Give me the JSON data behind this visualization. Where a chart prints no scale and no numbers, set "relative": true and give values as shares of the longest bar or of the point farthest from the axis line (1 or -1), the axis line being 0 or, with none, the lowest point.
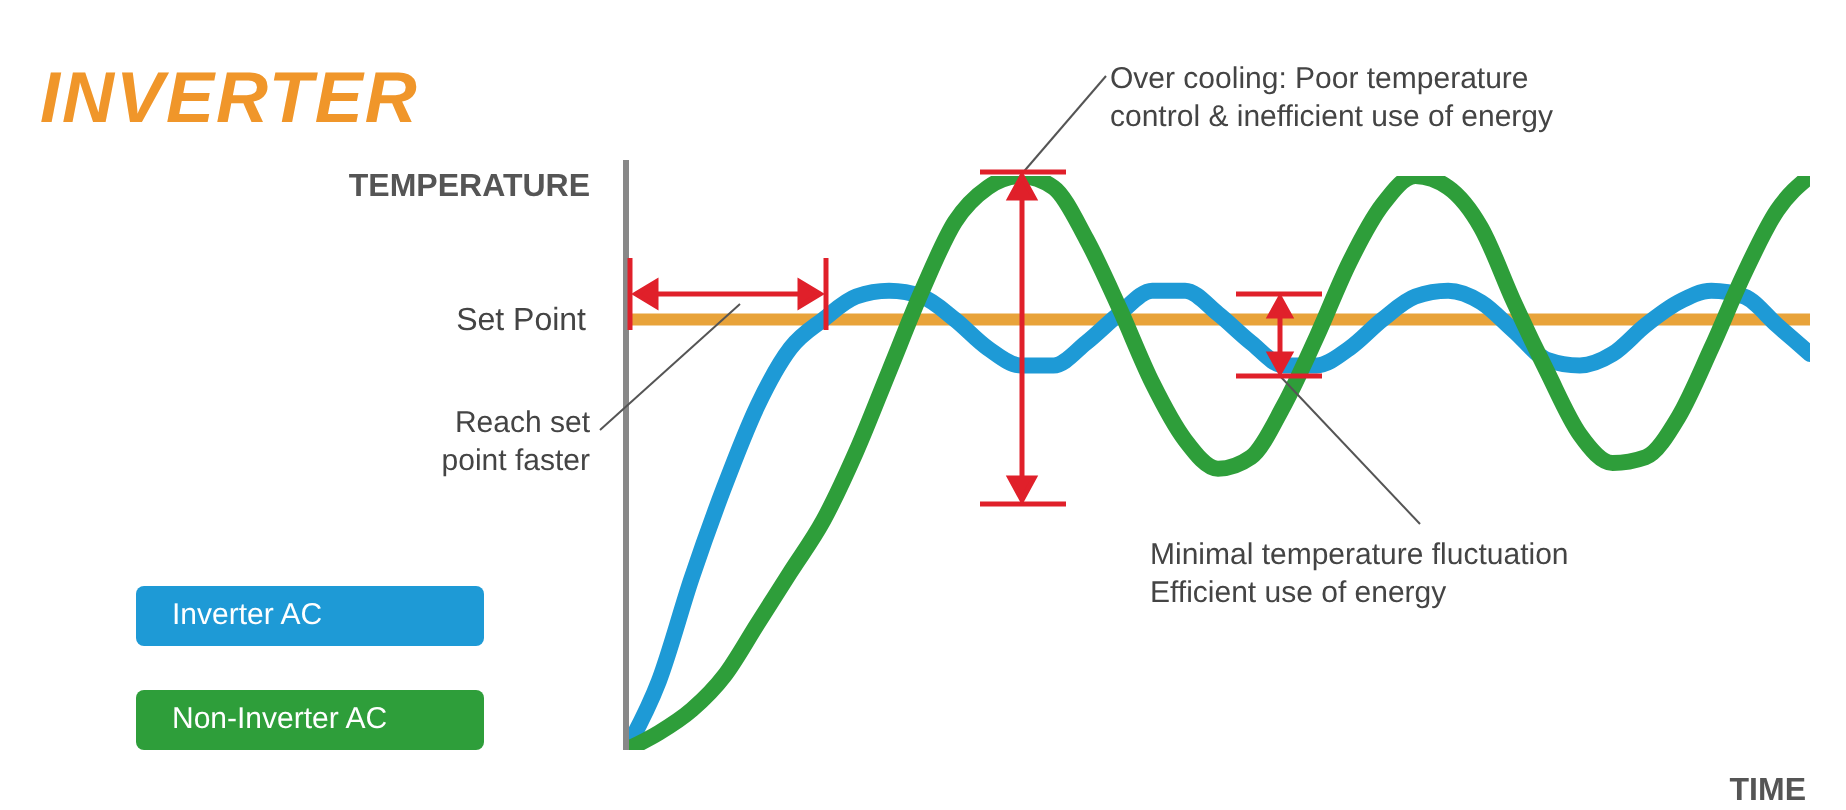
{
  "chart_data": {
    "type": "line",
    "title": "INVERTER",
    "ylabel": "TEMPERATURE",
    "xlabel": "TIME",
    "relative": true,
    "legend": "left",
    "marker": "none",
    "line_style": "solid",
    "categories": [
      null,
      null,
      null,
      null,
      null,
      null,
      null,
      null,
      null,
      null,
      null,
      null,
      null,
      null,
      null,
      null,
      null,
      null,
      null,
      null,
      null,
      null,
      null,
      null,
      null,
      null,
      null,
      null,
      null,
      null,
      null,
      null,
      null,
      null,
      null,
      null,
      null
    ],
    "series": [
      {
        "name": "Inverter AC",
        "color": "#1e9ad6",
        "values": [
          0,
          0.12,
          0.3,
          0.46,
          0.6,
          0.7,
          0.75,
          0.79,
          0.8,
          0.79,
          0.75,
          0.7,
          0.67,
          0.67,
          0.71,
          0.76,
          0.8,
          0.8,
          0.76,
          0.71,
          0.67,
          0.67,
          0.7,
          0.75,
          0.79,
          0.8,
          0.78,
          0.73,
          0.68,
          0.67,
          0.69,
          0.74,
          0.78,
          0.8,
          0.79,
          0.74,
          0.69
        ]
      },
      {
        "name": "Non-Inverter AC",
        "color": "#2e9e3a",
        "values": [
          0,
          0.03,
          0.07,
          0.13,
          0.22,
          0.31,
          0.4,
          0.52,
          0.66,
          0.8,
          0.92,
          0.98,
          1,
          0.98,
          0.89,
          0.77,
          0.64,
          0.54,
          0.49,
          0.51,
          0.6,
          0.72,
          0.85,
          0.95,
          1,
          0.98,
          0.91,
          0.78,
          0.66,
          0.55,
          0.5,
          0.51,
          0.58,
          0.7,
          0.83,
          0.94,
          1
        ]
      }
    ],
    "ref_lines": [
      {
        "axis": "y",
        "value": 0.75,
        "label": "Set Point",
        "color": "#e8a33a"
      }
    ],
    "annotations": [
      "Over cooling: Poor temperature\ncontrol & inefficient use of energy",
      "Reach set\npoint faster",
      "Minimal temperature fluctuation\nEfficient use of energy"
    ]
  }
}
